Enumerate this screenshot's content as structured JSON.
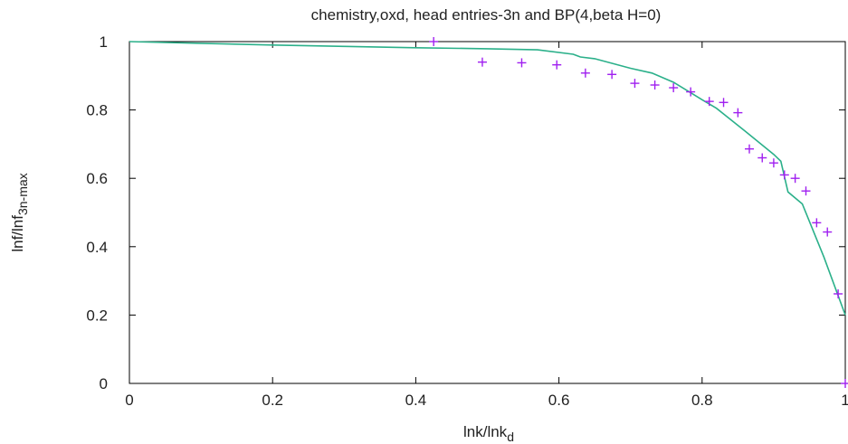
{
  "chart_data": {
    "type": "scatter",
    "title": "chemistry,oxd, head entries-3n and BP(4,beta H=0)",
    "xlabel": {
      "main": "lnk/lnk",
      "sub": "d"
    },
    "ylabel": {
      "main": "lnf/lnf",
      "sub": "3n-max"
    },
    "xlim": [
      0,
      1
    ],
    "ylim": [
      0,
      1
    ],
    "x_ticks": [
      "0",
      "0.2",
      "0.4",
      "0.6",
      "0.8",
      "1"
    ],
    "y_ticks": [
      "0",
      "0.2",
      "0.4",
      "0.6",
      "0.8",
      "1"
    ],
    "x_tick_values": [
      0,
      0.2,
      0.4,
      0.6,
      0.8,
      1
    ],
    "y_tick_values": [
      0,
      0.2,
      0.4,
      0.6,
      0.8,
      1
    ],
    "grid": false,
    "legend": "none",
    "series": [
      {
        "kind": "line",
        "color": "#2bb08a",
        "x": [
          0,
          0.1,
          0.2,
          0.3,
          0.4,
          0.5,
          0.57,
          0.62,
          0.63,
          0.65,
          0.7,
          0.73,
          0.76,
          0.8,
          0.82,
          0.86,
          0.9,
          0.91,
          0.92,
          0.94,
          0.97,
          1.0
        ],
        "y": [
          1.0,
          0.995,
          0.99,
          0.986,
          0.982,
          0.979,
          0.976,
          0.963,
          0.955,
          0.95,
          0.922,
          0.908,
          0.881,
          0.83,
          0.805,
          0.738,
          0.67,
          0.65,
          0.56,
          0.525,
          0.37,
          0.2
        ]
      },
      {
        "kind": "points",
        "marker": "+",
        "color": "#a020f0",
        "x": [
          0.425,
          0.493,
          0.548,
          0.597,
          0.637,
          0.674,
          0.706,
          0.734,
          0.76,
          0.784,
          0.81,
          0.83,
          0.85,
          0.866,
          0.884,
          0.9,
          0.915,
          0.93,
          0.945,
          0.96,
          0.975,
          0.99,
          1.0
        ],
        "y": [
          1.0,
          0.94,
          0.938,
          0.932,
          0.908,
          0.904,
          0.878,
          0.873,
          0.865,
          0.853,
          0.825,
          0.822,
          0.792,
          0.686,
          0.66,
          0.645,
          0.61,
          0.6,
          0.563,
          0.47,
          0.443,
          0.262,
          0.0
        ]
      }
    ]
  }
}
